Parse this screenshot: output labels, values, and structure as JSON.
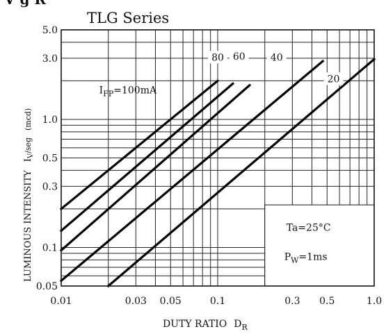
{
  "chart_data": {
    "type": "line",
    "title": "TLG Series",
    "header_fragment": "V  g  R",
    "xlabel": "DUTY RATIO",
    "xlabel_symbol": "D",
    "xlabel_subscript": "R",
    "ylabel": "LUMINOUS INTENSITY",
    "ylabel_symbol": "I",
    "ylabel_subscript": "V",
    "ylabel_suffix": "/seg",
    "ylabel_unit": "(mcd)",
    "x_scale": "log",
    "y_scale": "log",
    "xlim": [
      0.01,
      1.0
    ],
    "ylim": [
      0.05,
      5.0
    ],
    "x_ticks": [
      {
        "value": 0.01,
        "label": "0.01"
      },
      {
        "value": 0.03,
        "label": "0.03"
      },
      {
        "value": 0.05,
        "label": "0.05"
      },
      {
        "value": 0.1,
        "label": "0.1"
      },
      {
        "value": 0.3,
        "label": "0.3"
      },
      {
        "value": 0.5,
        "label": "0.5"
      },
      {
        "value": 1.0,
        "label": "1.0"
      }
    ],
    "y_ticks": [
      {
        "value": 0.05,
        "label": "0.05"
      },
      {
        "value": 0.1,
        "label": "0.1"
      },
      {
        "value": 0.3,
        "label": "0.3"
      },
      {
        "value": 0.5,
        "label": "0.5"
      },
      {
        "value": 1.0,
        "label": "1.0"
      },
      {
        "value": 3.0,
        "label": "3.0"
      },
      {
        "value": 5.0,
        "label": "5.0"
      }
    ],
    "grid": true,
    "series_label_prefix": "I",
    "series_label_subscript": "FP",
    "series_label_suffix": "=100mA",
    "series": [
      {
        "name": "100",
        "x": [
          0.01,
          0.1
        ],
        "y": [
          0.2,
          2.0
        ]
      },
      {
        "name": "80",
        "x": [
          0.01,
          0.125
        ],
        "y": [
          0.135,
          1.9
        ]
      },
      {
        "name": "60",
        "x": [
          0.01,
          0.16
        ],
        "y": [
          0.095,
          1.85
        ]
      },
      {
        "name": "40",
        "x": [
          0.01,
          0.47
        ],
        "y": [
          0.055,
          2.85
        ]
      },
      {
        "name": "20",
        "x": [
          0.02,
          1.0
        ],
        "y": [
          0.05,
          2.95
        ]
      }
    ],
    "conditions": {
      "ta_prefix": "Ta",
      "ta_value": "=25°C",
      "pw_prefix": "P",
      "pw_subscript": "W",
      "pw_value": "=1ms"
    }
  }
}
